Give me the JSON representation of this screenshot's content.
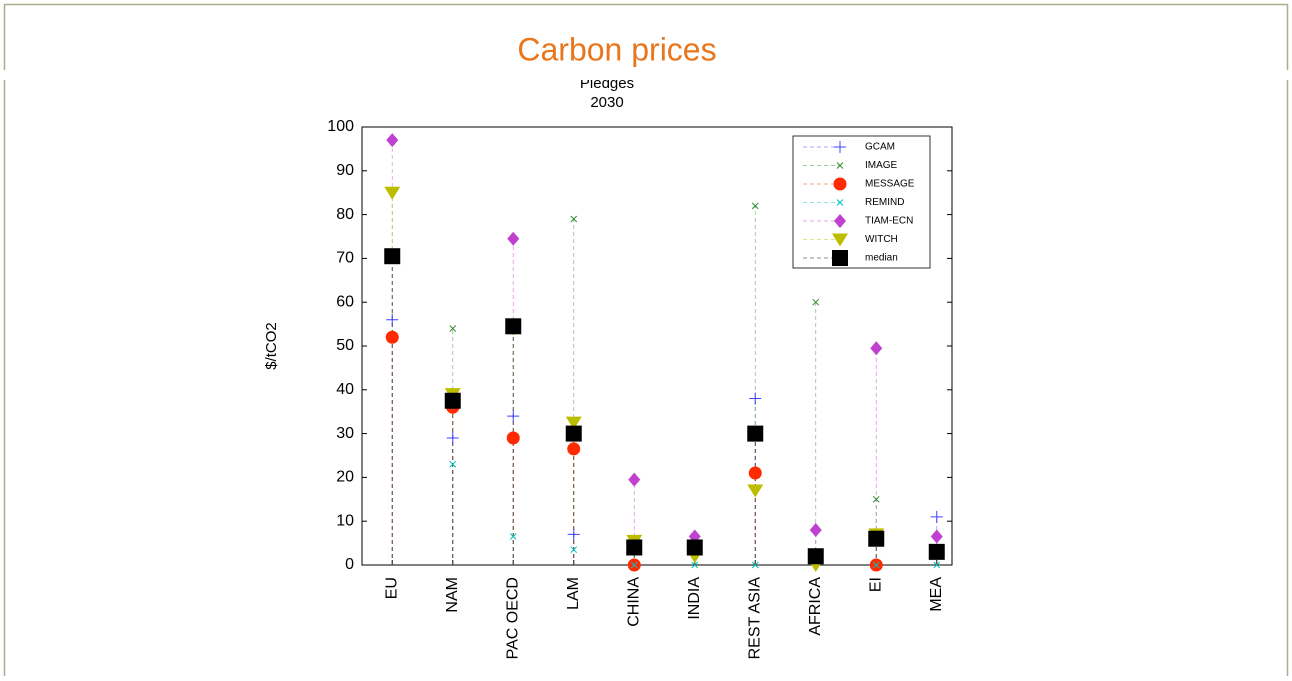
{
  "chart_data": {
    "type": "scatter",
    "title": "Carbon prices",
    "subtitle": [
      "Pledges",
      "2030"
    ],
    "ylabel": "$/tCO2",
    "categories": [
      "EU",
      "NAM",
      "PAC OECD",
      "LAM",
      "CHINA",
      "INDIA",
      "REST ASIA",
      "AFRICA",
      "EI",
      "MEA"
    ],
    "ylim": [
      0,
      100
    ],
    "yticks": [
      0,
      10,
      20,
      30,
      40,
      50,
      60,
      70,
      80,
      90,
      100
    ],
    "legend": "upper right",
    "series": [
      {
        "name": "GCAM",
        "color": "#4040ff",
        "marker": "plus",
        "values": [
          56,
          29,
          34,
          7,
          4,
          4,
          38,
          2,
          6,
          11
        ]
      },
      {
        "name": "IMAGE",
        "color": "#2e8b2e",
        "marker": "x",
        "values": [
          70,
          54,
          54,
          79,
          5,
          4,
          82,
          60,
          15,
          3
        ]
      },
      {
        "name": "MESSAGE",
        "color": "#ff2a00",
        "marker": "circle",
        "values": [
          52,
          36,
          29,
          26.5,
          0,
          null,
          21,
          null,
          0,
          null
        ]
      },
      {
        "name": "REMIND",
        "color": "#00c0c0",
        "marker": "x",
        "values": [
          null,
          23,
          6.5,
          3.5,
          0,
          0,
          0,
          null,
          0,
          0
        ]
      },
      {
        "name": "TIAM-ECN",
        "color": "#c040d0",
        "marker": "diamond",
        "values": [
          97,
          37,
          74.5,
          30,
          19.5,
          6.5,
          30,
          8,
          49.5,
          6.5
        ]
      },
      {
        "name": "WITCH",
        "color": "#bdbd00",
        "marker": "triangle",
        "values": [
          85,
          39,
          54,
          32.5,
          5.5,
          2,
          17,
          0,
          7,
          3
        ]
      },
      {
        "name": "median",
        "color": "#000000",
        "marker": "square",
        "values": [
          70.5,
          37.5,
          54.5,
          30,
          4,
          4,
          30,
          2,
          6,
          3
        ]
      }
    ]
  }
}
